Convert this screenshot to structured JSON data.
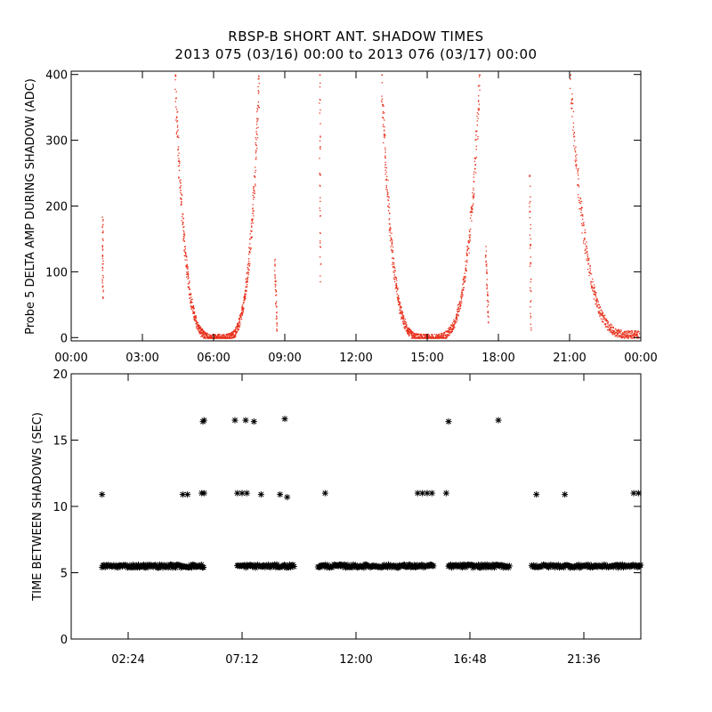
{
  "chart_data": [
    {
      "type": "scatter",
      "title": "RBSP-B SHORT ANT. SHADOW TIMES",
      "subtitle": "2013 075 (03/16) 00:00 to 2013 076 (03/17) 00:00",
      "xlabel": "",
      "ylabel": "Probe 5 DELTA AMP DURING SHADOW (ADC)",
      "xlim_hours": [
        0,
        24
      ],
      "ylim": [
        -5,
        405
      ],
      "x_tick_labels": [
        "00:00",
        "03:00",
        "06:00",
        "09:00",
        "12:00",
        "15:00",
        "18:00",
        "21:00",
        "00:00"
      ],
      "y_tick_labels": [
        "0",
        "100",
        "200",
        "300",
        "400"
      ],
      "y_ticks": [
        0,
        100,
        200,
        300,
        400
      ],
      "marker_color": "#e8301c",
      "segments": [
        {
          "x0": 1.3,
          "x1": 1.32,
          "y0": 180,
          "y1": 60,
          "mode": "line"
        },
        {
          "x0": 4.35,
          "x1": 6.2,
          "y0": 400,
          "y1": 0,
          "mode": "decay"
        },
        {
          "x0": 6.2,
          "x1": 7.9,
          "y0": 0,
          "y1": 400,
          "mode": "rise"
        },
        {
          "x0": 8.55,
          "x1": 8.65,
          "y0": 120,
          "y1": 10,
          "mode": "line"
        },
        {
          "x0": 10.45,
          "x1": 10.48,
          "y0": 400,
          "y1": 90,
          "mode": "line"
        },
        {
          "x0": 13.05,
          "x1": 15.0,
          "y0": 400,
          "y1": 0,
          "mode": "decay"
        },
        {
          "x0": 15.0,
          "x1": 17.2,
          "y0": 0,
          "y1": 400,
          "mode": "rise"
        },
        {
          "x0": 17.45,
          "x1": 17.55,
          "y0": 130,
          "y1": 25,
          "mode": "line"
        },
        {
          "x0": 19.3,
          "x1": 19.35,
          "y0": 250,
          "y1": 10,
          "mode": "line"
        },
        {
          "x0": 21.0,
          "x1": 23.9,
          "y0": 400,
          "y1": 5,
          "mode": "decay"
        }
      ]
    },
    {
      "type": "scatter",
      "xlabel": "",
      "ylabel": "TIME BETWEEN SHADOWS (SEC)",
      "xlim_hours": [
        0,
        24
      ],
      "ylim": [
        0,
        20
      ],
      "x_tick_labels": [
        "02:24",
        "07:12",
        "12:00",
        "16:48",
        "21:36"
      ],
      "x_ticks_hours": [
        2.4,
        7.2,
        12.0,
        16.8,
        21.6
      ],
      "y_tick_labels": [
        "0",
        "5",
        "10",
        "15",
        "20"
      ],
      "y_ticks": [
        0,
        5,
        10,
        15,
        20
      ],
      "marker_color": "#000000",
      "baseline_value": 5.5,
      "baseline_runs_hours": [
        [
          1.3,
          5.6
        ],
        [
          7.0,
          9.4
        ],
        [
          10.4,
          15.3
        ],
        [
          15.9,
          18.5
        ],
        [
          19.4,
          24.0
        ]
      ],
      "outliers": [
        {
          "x": 1.3,
          "y": 10.9
        },
        {
          "x": 4.7,
          "y": 10.9
        },
        {
          "x": 4.9,
          "y": 10.9
        },
        {
          "x": 5.5,
          "y": 11.0
        },
        {
          "x": 5.6,
          "y": 11.0
        },
        {
          "x": 5.55,
          "y": 16.4
        },
        {
          "x": 5.6,
          "y": 16.5
        },
        {
          "x": 6.9,
          "y": 16.5
        },
        {
          "x": 7.0,
          "y": 11.0
        },
        {
          "x": 7.2,
          "y": 11.0
        },
        {
          "x": 7.4,
          "y": 11.0
        },
        {
          "x": 7.35,
          "y": 16.5
        },
        {
          "x": 7.7,
          "y": 16.4
        },
        {
          "x": 8.0,
          "y": 10.9
        },
        {
          "x": 8.8,
          "y": 10.9
        },
        {
          "x": 9.0,
          "y": 16.6
        },
        {
          "x": 9.1,
          "y": 10.7
        },
        {
          "x": 10.7,
          "y": 11.0
        },
        {
          "x": 14.6,
          "y": 11.0
        },
        {
          "x": 14.8,
          "y": 11.0
        },
        {
          "x": 15.0,
          "y": 11.0
        },
        {
          "x": 15.2,
          "y": 11.0
        },
        {
          "x": 15.8,
          "y": 11.0
        },
        {
          "x": 15.9,
          "y": 16.4
        },
        {
          "x": 18.0,
          "y": 16.5
        },
        {
          "x": 19.6,
          "y": 10.9
        },
        {
          "x": 20.8,
          "y": 10.9
        },
        {
          "x": 23.7,
          "y": 11.0
        },
        {
          "x": 23.9,
          "y": 11.0
        }
      ]
    }
  ]
}
